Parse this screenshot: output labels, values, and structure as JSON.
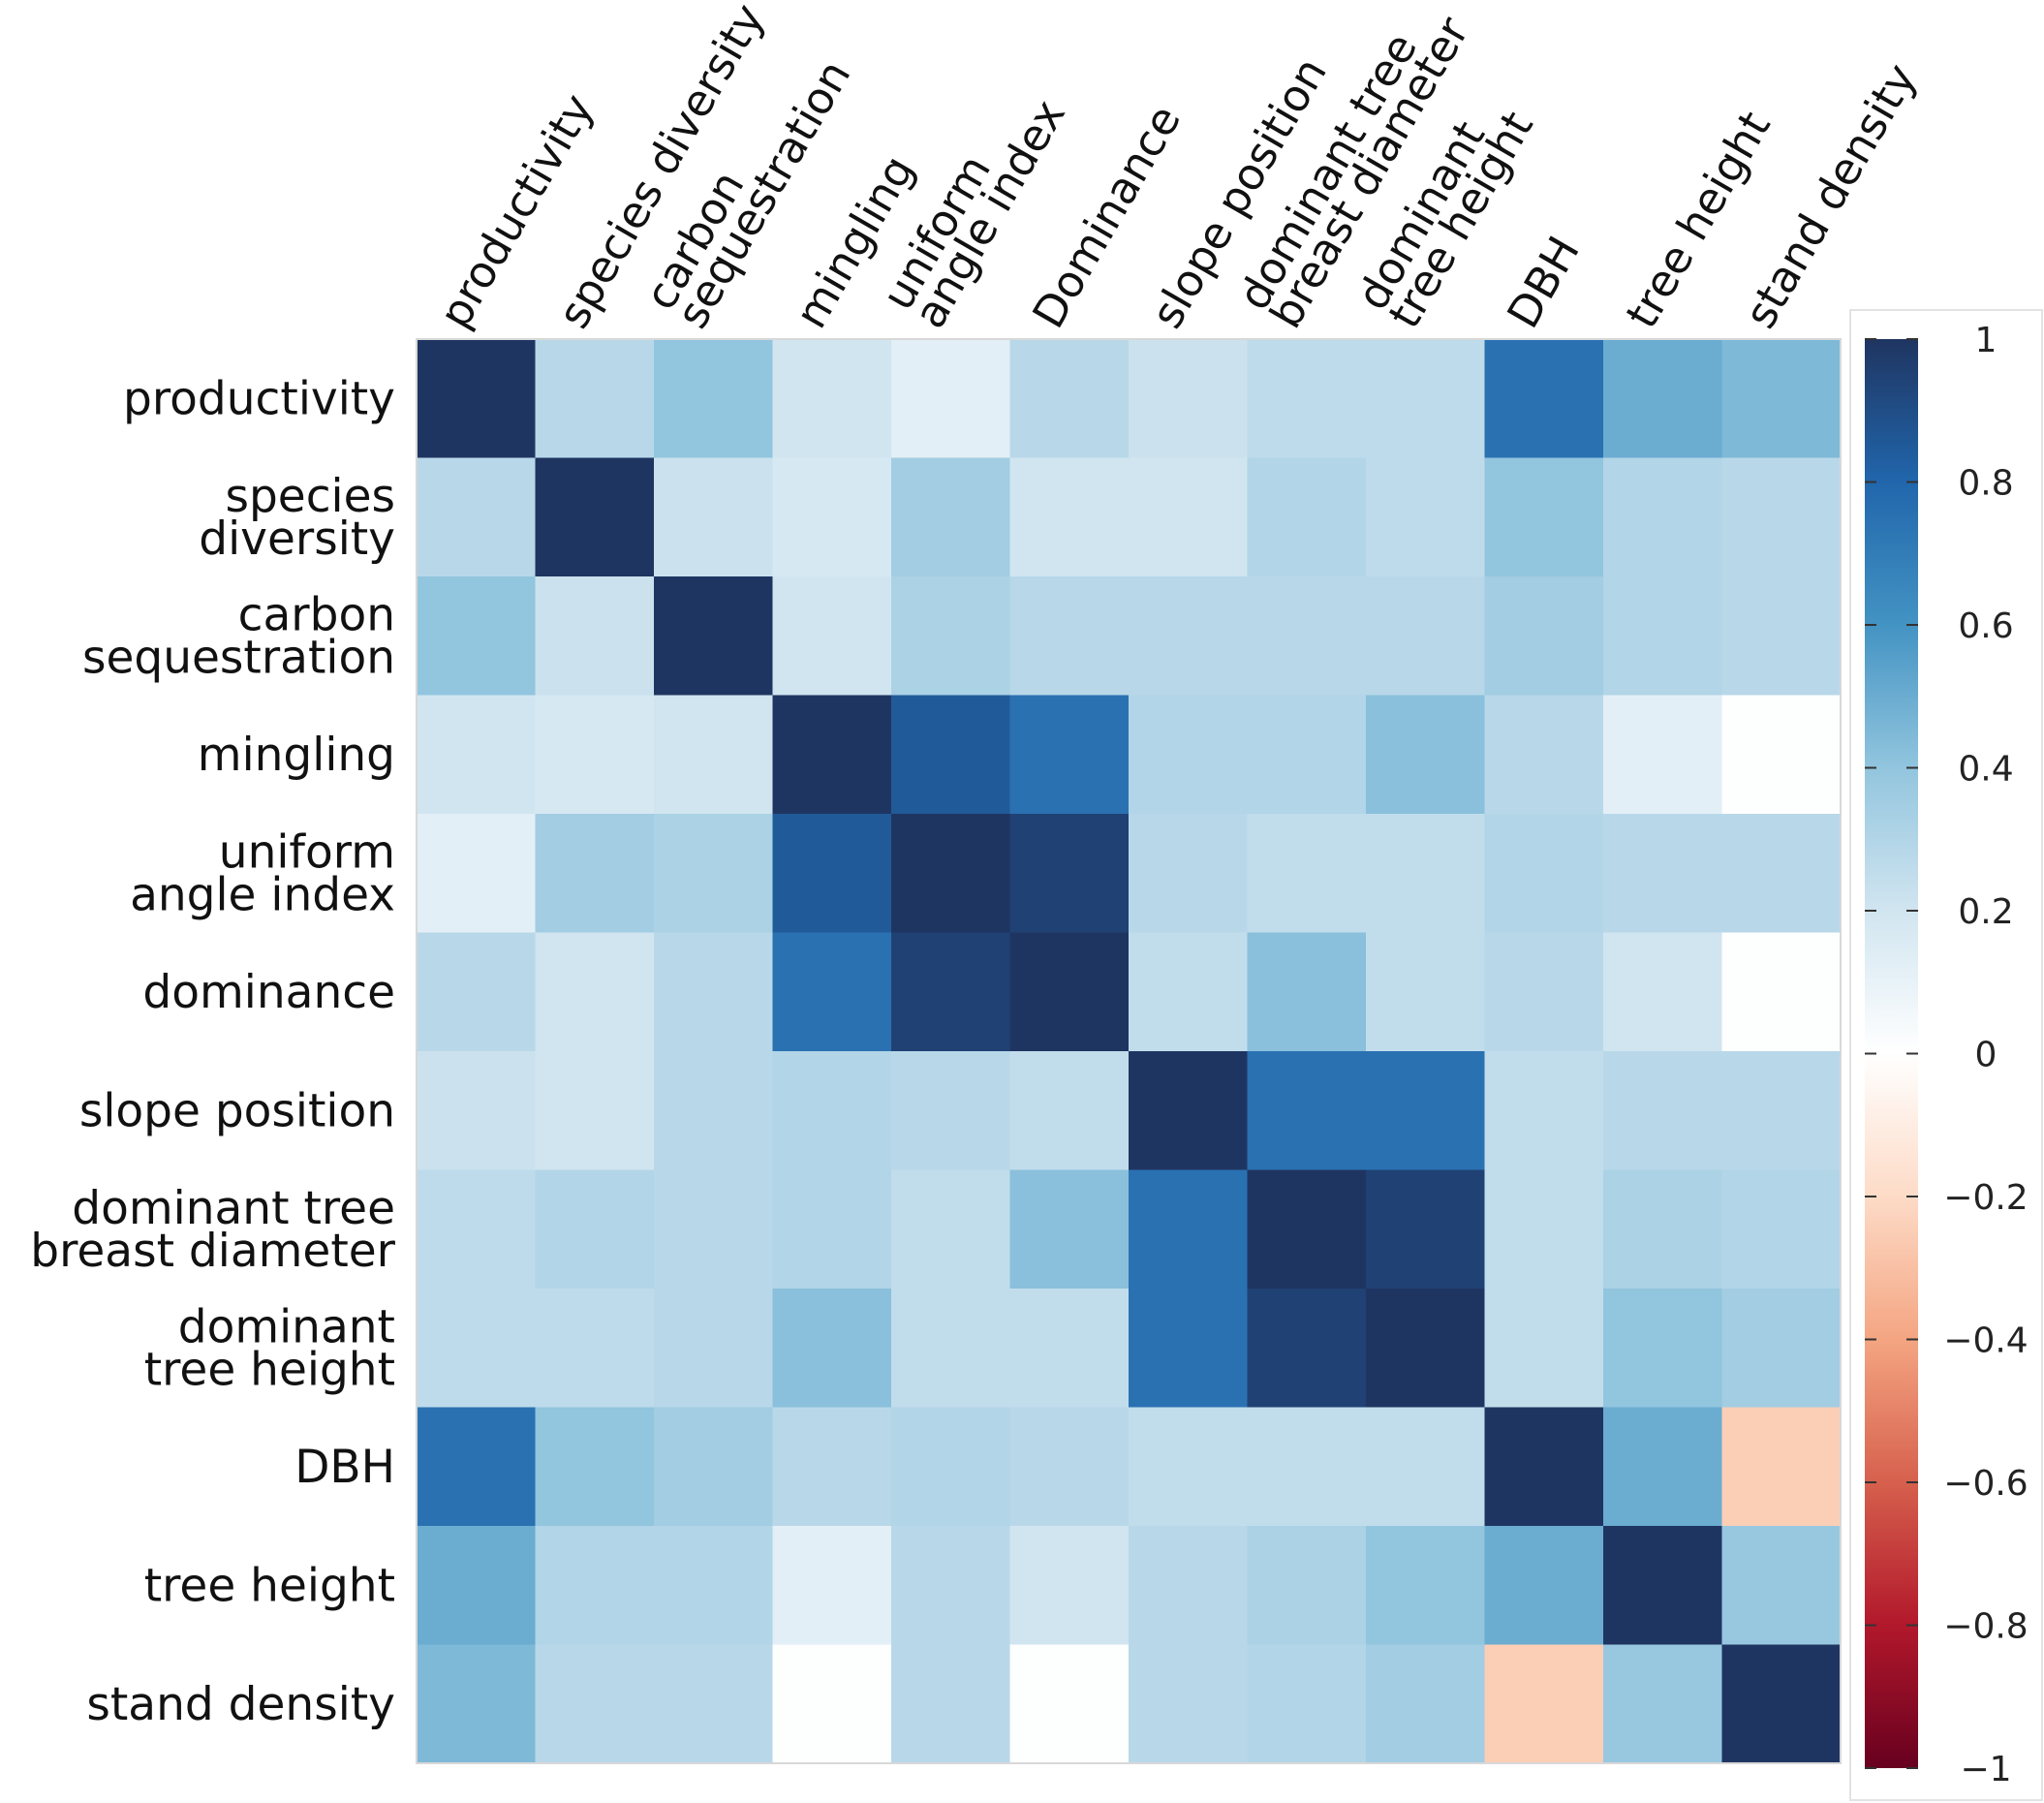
{
  "chart_data": {
    "type": "heatmap",
    "title": "",
    "row_labels": [
      [
        "productivity"
      ],
      [
        "species",
        "diversity"
      ],
      [
        "carbon",
        "sequestration"
      ],
      [
        "mingling"
      ],
      [
        "uniform",
        "angle index"
      ],
      [
        "dominance"
      ],
      [
        "slope position"
      ],
      [
        "dominant tree",
        "breast diameter"
      ],
      [
        "dominant",
        "tree height"
      ],
      [
        "DBH"
      ],
      [
        "tree height"
      ],
      [
        "stand density"
      ]
    ],
    "column_labels": [
      [
        "productivity"
      ],
      [
        "species diversity"
      ],
      [
        "carbon",
        "sequestration"
      ],
      [
        "mingling"
      ],
      [
        "uniform",
        "angle index"
      ],
      [
        "Dominance"
      ],
      [
        "slope position"
      ],
      [
        "dominant tree",
        "breast diameter"
      ],
      [
        "dominant",
        "tree height"
      ],
      [
        "DBH"
      ],
      [
        "tree height"
      ],
      [
        "stand density"
      ]
    ],
    "values": [
      [
        1.0,
        0.28,
        0.4,
        0.2,
        0.12,
        0.28,
        0.22,
        0.26,
        0.26,
        0.75,
        0.5,
        0.45
      ],
      [
        0.28,
        1.0,
        0.22,
        0.18,
        0.35,
        0.2,
        0.2,
        0.3,
        0.26,
        0.4,
        0.3,
        0.28
      ],
      [
        0.4,
        0.22,
        1.0,
        0.2,
        0.32,
        0.28,
        0.28,
        0.28,
        0.28,
        0.35,
        0.3,
        0.28
      ],
      [
        0.2,
        0.18,
        0.2,
        1.0,
        0.85,
        0.75,
        0.3,
        0.3,
        0.42,
        0.28,
        0.12,
        0.01
      ],
      [
        0.12,
        0.35,
        0.32,
        0.85,
        1.0,
        0.95,
        0.28,
        0.25,
        0.25,
        0.3,
        0.28,
        0.28
      ],
      [
        0.28,
        0.2,
        0.28,
        0.75,
        0.95,
        1.0,
        0.25,
        0.42,
        0.25,
        0.28,
        0.2,
        0.01
      ],
      [
        0.22,
        0.2,
        0.28,
        0.3,
        0.28,
        0.25,
        1.0,
        0.75,
        0.75,
        0.25,
        0.28,
        0.28
      ],
      [
        0.26,
        0.3,
        0.28,
        0.3,
        0.25,
        0.42,
        0.75,
        1.0,
        0.95,
        0.25,
        0.32,
        0.3
      ],
      [
        0.26,
        0.26,
        0.28,
        0.42,
        0.25,
        0.25,
        0.75,
        0.95,
        1.0,
        0.25,
        0.4,
        0.35
      ],
      [
        0.75,
        0.4,
        0.35,
        0.28,
        0.3,
        0.28,
        0.25,
        0.25,
        0.25,
        1.0,
        0.5,
        -0.25
      ],
      [
        0.5,
        0.3,
        0.3,
        0.12,
        0.28,
        0.2,
        0.28,
        0.32,
        0.4,
        0.5,
        1.0,
        0.38
      ],
      [
        0.45,
        0.28,
        0.28,
        0.01,
        0.28,
        0.01,
        0.28,
        0.3,
        0.35,
        -0.25,
        0.38,
        1.0
      ]
    ],
    "color_scale": {
      "min": -1,
      "max": 1,
      "stops": [
        {
          "value": -1.0,
          "color": "#67001f"
        },
        {
          "value": -0.8,
          "color": "#b2182b"
        },
        {
          "value": -0.6,
          "color": "#d6604d"
        },
        {
          "value": -0.4,
          "color": "#f4a582"
        },
        {
          "value": -0.2,
          "color": "#fddbc7"
        },
        {
          "value": 0.0,
          "color": "#ffffff"
        },
        {
          "value": 0.2,
          "color": "#d1e5f0"
        },
        {
          "value": 0.4,
          "color": "#92c5de"
        },
        {
          "value": 0.6,
          "color": "#4393c3"
        },
        {
          "value": 0.8,
          "color": "#2166ac"
        },
        {
          "value": 1.0,
          "color": "#1f3561"
        }
      ],
      "ticks": [
        "1",
        "0.8",
        "0.6",
        "0.4",
        "0.2",
        "0",
        "−0.2",
        "−0.4",
        "−0.6",
        "−0.8",
        "−1"
      ]
    },
    "legend": "right"
  }
}
